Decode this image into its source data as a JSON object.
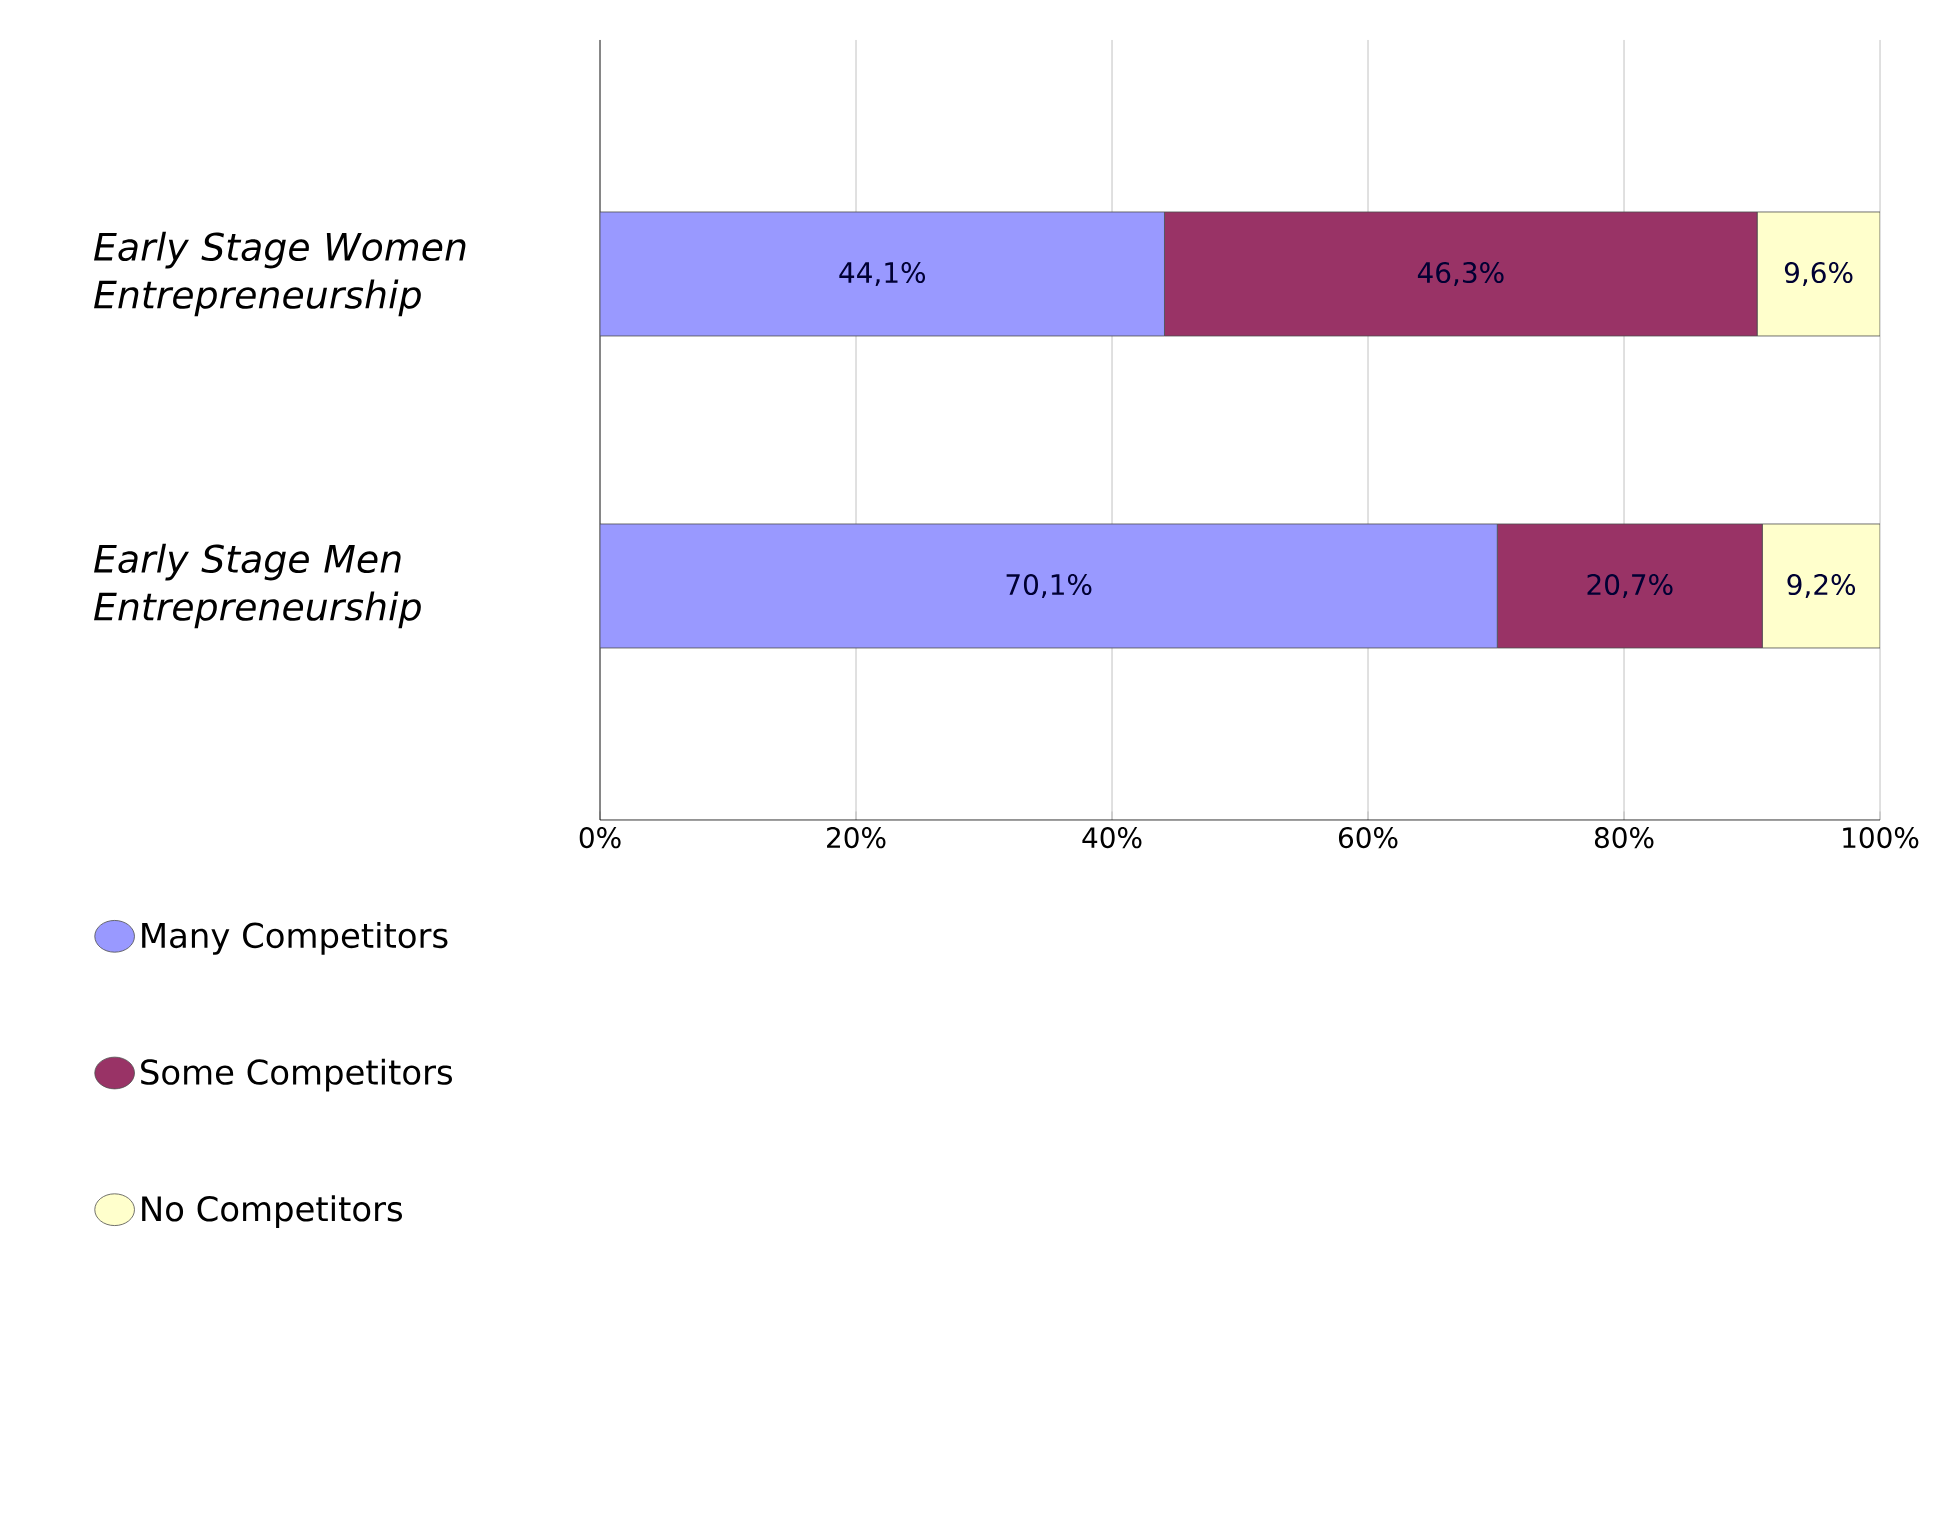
{
  "chart_data": {
    "type": "bar",
    "orientation": "horizontal",
    "stacked": true,
    "categories": [
      "Early Stage Women Entrepreneurship",
      "Early Stage Men Entrepreneurship"
    ],
    "series": [
      {
        "name": "Many Competitors",
        "color": "#9999ff",
        "values": [
          44.1,
          70.1
        ],
        "value_labels": [
          "44,1%",
          "70,1%"
        ]
      },
      {
        "name": "Some Competitors",
        "color": "#993366",
        "values": [
          46.3,
          20.7
        ],
        "value_labels": [
          "46,3%",
          "20,7%"
        ]
      },
      {
        "name": "No Competitors",
        "color": "#ffffcc",
        "values": [
          9.6,
          9.2
        ],
        "value_labels": [
          "9,6%",
          "9,2%"
        ]
      }
    ],
    "xlim": [
      0,
      100
    ],
    "xticks": [
      {
        "value": 0,
        "label": "0%"
      },
      {
        "value": 20,
        "label": "20%"
      },
      {
        "value": 40,
        "label": "40%"
      },
      {
        "value": 60,
        "label": "60%"
      },
      {
        "value": 80,
        "label": "80%"
      },
      {
        "value": 100,
        "label": "100%"
      }
    ],
    "grid": "x",
    "legend": "bottom left"
  }
}
